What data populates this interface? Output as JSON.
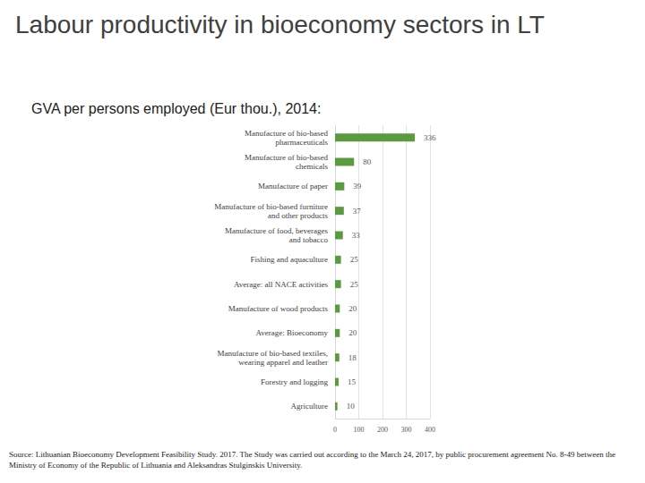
{
  "chart_data": {
    "type": "bar",
    "title": "Labour productivity in bioeconomy sectors in LT",
    "subtitle": "GVA per persons employed (Eur thou.), 2014:",
    "annotations": [
      "Source: Lithuanian Bioeconomy Development Feasibility Study. 2017. The Study was carried out according to the March 24, 2017, by public procurement agreement No. 8-49 between the Ministry of Economy of the Republic of Lithuania and Aleksandras Stulginskis University."
    ],
    "orientation": "horizontal",
    "categories": [
      "Manufacture of bio-based\npharmaceuticals",
      "Manufacture of bio-based\nchemicals",
      "Manufacture of paper",
      "Manufacture of bio-based furniture\nand other products",
      "Manufacture of food, beverages\nand tobacco",
      "Fishing and aquaculture",
      "Average: all NACE activities",
      "Manufacture of wood products",
      "Average: Bioeconomy",
      "Manufacture of bio-based textiles,\nwearing apparel and leather",
      "Forestry and logging",
      "Agriculture"
    ],
    "values": [
      336,
      80,
      39,
      37,
      33,
      25,
      25,
      20,
      20,
      18,
      15,
      10
    ],
    "color": "#5b9b3f",
    "xlim": [
      0,
      400
    ],
    "xticks": [
      0,
      100,
      200,
      300,
      400
    ],
    "grid": true,
    "data_labels": true
  }
}
